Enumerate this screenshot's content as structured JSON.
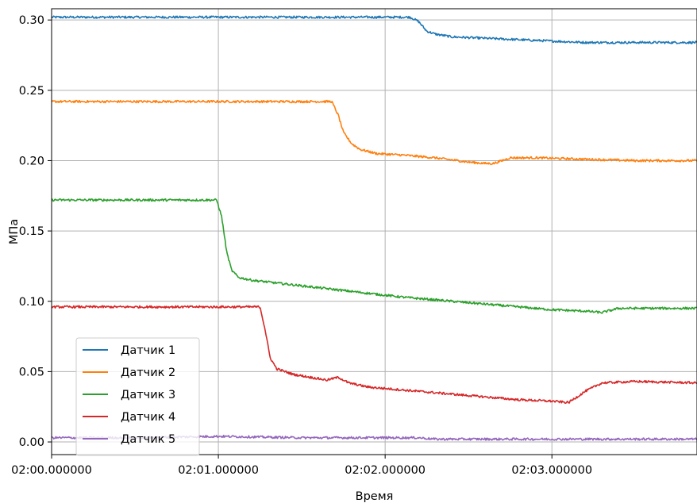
{
  "chart_data": {
    "type": "line",
    "xlabel": "Время",
    "ylabel": "МПа",
    "xlim": [
      0,
      3.87
    ],
    "ylim": [
      -0.009,
      0.308
    ],
    "grid": true,
    "legend_placement": "lower-left",
    "x_ticks": [
      {
        "value": 0,
        "label": "02:00.000000"
      },
      {
        "value": 1,
        "label": "02:01.000000"
      },
      {
        "value": 2,
        "label": "02:02.000000"
      },
      {
        "value": 3,
        "label": "02:03.000000"
      }
    ],
    "y_ticks": [
      {
        "value": 0.0,
        "label": "0.00"
      },
      {
        "value": 0.05,
        "label": "0.05"
      },
      {
        "value": 0.1,
        "label": "0.10"
      },
      {
        "value": 0.15,
        "label": "0.15"
      },
      {
        "value": 0.2,
        "label": "0.20"
      },
      {
        "value": 0.25,
        "label": "0.25"
      },
      {
        "value": 0.3,
        "label": "0.30"
      }
    ],
    "series": [
      {
        "name": "Датчик 1",
        "color": "#1f77b4",
        "x": [
          0,
          0.5,
          1.0,
          1.5,
          2.0,
          2.15,
          2.2,
          2.25,
          2.3,
          2.4,
          2.6,
          2.8,
          3.0,
          3.2,
          3.4,
          3.6,
          3.87
        ],
        "y": [
          0.302,
          0.302,
          0.302,
          0.302,
          0.302,
          0.302,
          0.299,
          0.292,
          0.29,
          0.288,
          0.287,
          0.286,
          0.285,
          0.284,
          0.284,
          0.284,
          0.284
        ]
      },
      {
        "name": "Датчик 2",
        "color": "#ff7f0e",
        "x": [
          0,
          0.5,
          1.0,
          1.5,
          1.68,
          1.72,
          1.75,
          1.8,
          1.85,
          1.95,
          2.1,
          2.3,
          2.5,
          2.6,
          2.65,
          2.7,
          2.75,
          2.9,
          3.2,
          3.5,
          3.87
        ],
        "y": [
          0.242,
          0.242,
          0.242,
          0.242,
          0.242,
          0.232,
          0.22,
          0.212,
          0.208,
          0.205,
          0.204,
          0.202,
          0.199,
          0.198,
          0.198,
          0.2,
          0.202,
          0.202,
          0.201,
          0.2,
          0.2
        ]
      },
      {
        "name": "Датчик 3",
        "color": "#2ca02c",
        "x": [
          0,
          0.5,
          0.99,
          1.02,
          1.05,
          1.08,
          1.12,
          1.2,
          1.5,
          1.8,
          2.1,
          2.4,
          2.7,
          3.0,
          3.2,
          3.3,
          3.4,
          3.6,
          3.87
        ],
        "y": [
          0.172,
          0.172,
          0.172,
          0.16,
          0.135,
          0.122,
          0.117,
          0.115,
          0.111,
          0.107,
          0.103,
          0.1,
          0.097,
          0.094,
          0.093,
          0.092,
          0.095,
          0.095,
          0.095
        ]
      },
      {
        "name": "Датчик 4",
        "color": "#d62728",
        "x": [
          0,
          0.5,
          1.0,
          1.25,
          1.28,
          1.31,
          1.35,
          1.45,
          1.65,
          1.72,
          1.78,
          1.9,
          2.2,
          2.5,
          2.8,
          3.0,
          3.1,
          3.2,
          3.3,
          3.5,
          3.87
        ],
        "y": [
          0.096,
          0.096,
          0.096,
          0.096,
          0.08,
          0.06,
          0.052,
          0.048,
          0.044,
          0.046,
          0.042,
          0.039,
          0.036,
          0.033,
          0.03,
          0.029,
          0.028,
          0.036,
          0.042,
          0.043,
          0.042
        ]
      },
      {
        "name": "Датчик 5",
        "color": "#9467bd",
        "x": [
          0,
          0.5,
          1.0,
          1.5,
          2.0,
          2.2,
          2.3,
          2.5,
          3.0,
          3.5,
          3.87
        ],
        "y": [
          0.003,
          0.003,
          0.004,
          0.003,
          0.003,
          0.003,
          0.002,
          0.002,
          0.002,
          0.002,
          0.002
        ]
      }
    ]
  }
}
